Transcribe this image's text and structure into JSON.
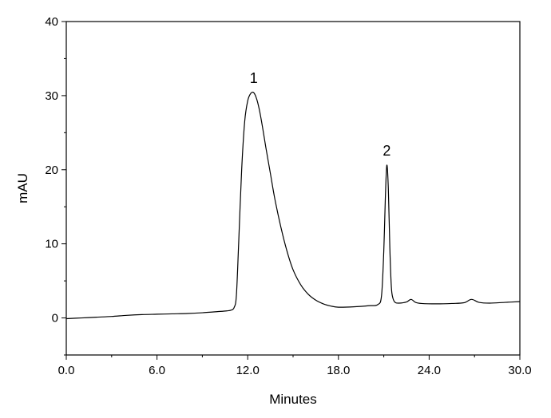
{
  "chart_data": {
    "type": "line",
    "title": "",
    "xlabel": "Minutes",
    "ylabel": "mAU",
    "xlim": [
      0,
      30
    ],
    "ylim": [
      -5,
      40
    ],
    "x_ticks": [
      "0.0",
      "6.0",
      "12.0",
      "18.0",
      "24.0",
      "30.0"
    ],
    "y_ticks": [
      "0",
      "10",
      "20",
      "30",
      "40"
    ],
    "grid": false,
    "legend": "none",
    "line_color": "#000000",
    "series": [
      {
        "x": [
          0,
          1,
          2,
          3,
          4,
          5,
          6,
          7,
          8,
          9,
          10,
          10.6,
          10.9,
          11.1,
          11.25,
          11.4,
          11.6,
          11.8,
          12.0,
          12.2,
          12.4,
          12.6,
          12.8,
          13.0,
          13.2,
          13.5,
          13.8,
          14.2,
          14.6,
          15.0,
          15.5,
          16.0,
          16.5,
          17.0,
          17.5,
          18.0,
          19.0,
          20.0,
          20.6,
          20.85,
          21.0,
          21.1,
          21.2,
          21.3,
          21.4,
          21.5,
          21.6,
          21.75,
          22.0,
          22.5,
          22.8,
          23.1,
          23.5,
          24.5,
          25.5,
          26.3,
          26.8,
          27.3,
          28.0,
          29.0,
          30.0
        ],
        "y": [
          -0.1,
          0.0,
          0.1,
          0.2,
          0.35,
          0.45,
          0.5,
          0.55,
          0.6,
          0.7,
          0.85,
          0.95,
          1.05,
          1.4,
          3.0,
          10.0,
          20.0,
          26.5,
          29.3,
          30.3,
          30.4,
          29.5,
          27.8,
          25.5,
          23.0,
          19.5,
          16.0,
          12.2,
          9.0,
          6.5,
          4.5,
          3.2,
          2.4,
          1.9,
          1.6,
          1.45,
          1.5,
          1.65,
          1.8,
          3.0,
          9.0,
          16.0,
          20.6,
          17.5,
          9.5,
          4.2,
          2.7,
          2.1,
          2.0,
          2.15,
          2.5,
          2.1,
          1.95,
          1.9,
          1.95,
          2.05,
          2.5,
          2.1,
          2.0,
          2.1,
          2.2
        ]
      }
    ],
    "annotations": [
      {
        "text": "1",
        "x": 12.4,
        "y": 30.4
      },
      {
        "text": "2",
        "x": 21.2,
        "y": 20.6
      }
    ]
  }
}
